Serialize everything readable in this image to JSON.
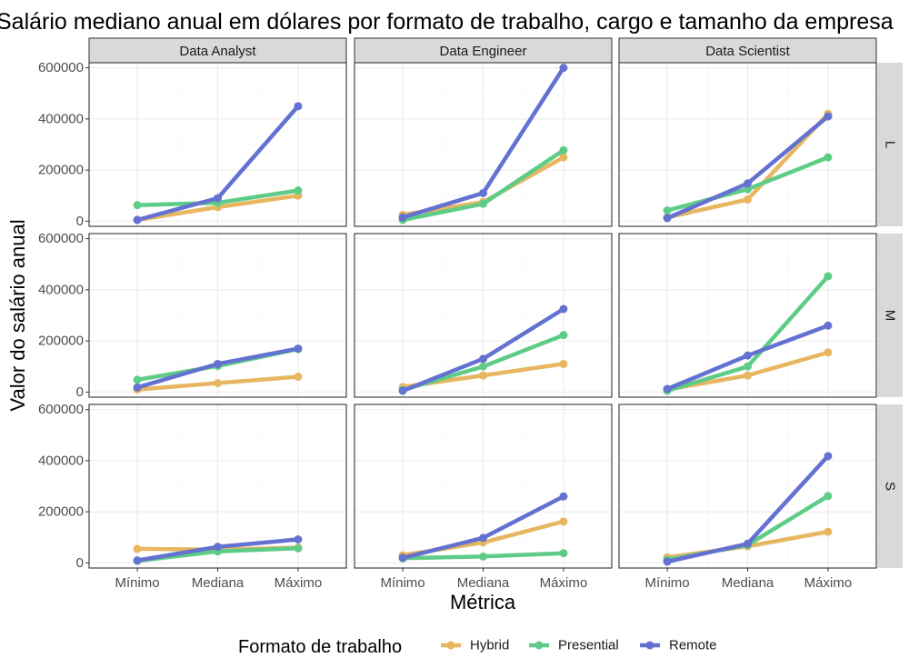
{
  "chart_data": {
    "type": "line",
    "title": "Salário mediano anual em dólares por formato de trabalho, cargo e tamanho da empresa",
    "xlabel": "Métrica",
    "ylabel": "Valor do salário anual",
    "categories": [
      "Mínimo",
      "Mediana",
      "Máximo"
    ],
    "y_ticks": [
      "0",
      "200000",
      "400000",
      "600000"
    ],
    "ylim": [
      -20000,
      620000
    ],
    "grid": true,
    "legend": {
      "title": "Formato de trabalho",
      "position": "bottom"
    },
    "col_facets": [
      "Data Analyst",
      "Data Engineer",
      "Data Scientist"
    ],
    "row_facets": [
      "L",
      "M",
      "S"
    ],
    "series_names": [
      "Hybrid",
      "Presential",
      "Remote"
    ],
    "colors": {
      "Hybrid": "#E8B660",
      "Presential": "#5ECC87",
      "Remote": "#6371D1"
    },
    "panels": [
      {
        "row": "L",
        "col": "Data Analyst",
        "series": [
          {
            "name": "Hybrid",
            "values": [
              5000,
              55000,
              100000
            ]
          },
          {
            "name": "Presential",
            "values": [
              63000,
              72000,
              120000
            ]
          },
          {
            "name": "Remote",
            "values": [
              5000,
              90000,
              450000
            ]
          }
        ]
      },
      {
        "row": "L",
        "col": "Data Engineer",
        "series": [
          {
            "name": "Hybrid",
            "values": [
              25000,
              75000,
              250000
            ]
          },
          {
            "name": "Presential",
            "values": [
              5000,
              68000,
              278000
            ]
          },
          {
            "name": "Remote",
            "values": [
              15000,
              110000,
              600000
            ]
          }
        ]
      },
      {
        "row": "L",
        "col": "Data Scientist",
        "series": [
          {
            "name": "Hybrid",
            "values": [
              15000,
              85000,
              420000
            ]
          },
          {
            "name": "Presential",
            "values": [
              42000,
              125000,
              250000
            ]
          },
          {
            "name": "Remote",
            "values": [
              12000,
              148000,
              410000
            ]
          }
        ]
      },
      {
        "row": "M",
        "col": "Data Analyst",
        "series": [
          {
            "name": "Hybrid",
            "values": [
              10000,
              35000,
              60000
            ]
          },
          {
            "name": "Presential",
            "values": [
              48000,
              102000,
              168000
            ]
          },
          {
            "name": "Remote",
            "values": [
              18000,
              110000,
              170000
            ]
          }
        ]
      },
      {
        "row": "M",
        "col": "Data Engineer",
        "series": [
          {
            "name": "Hybrid",
            "values": [
              20000,
              65000,
              110000
            ]
          },
          {
            "name": "Presential",
            "values": [
              8000,
              100000,
              223000
            ]
          },
          {
            "name": "Remote",
            "values": [
              5000,
              130000,
              325000
            ]
          }
        ]
      },
      {
        "row": "M",
        "col": "Data Scientist",
        "series": [
          {
            "name": "Hybrid",
            "values": [
              10000,
              65000,
              155000
            ]
          },
          {
            "name": "Presential",
            "values": [
              5000,
              100000,
              453000
            ]
          },
          {
            "name": "Remote",
            "values": [
              12000,
              143000,
              260000
            ]
          }
        ]
      },
      {
        "row": "S",
        "col": "Data Analyst",
        "series": [
          {
            "name": "Hybrid",
            "values": [
              55000,
              52000,
              60000
            ]
          },
          {
            "name": "Presential",
            "values": [
              8000,
              45000,
              57000
            ]
          },
          {
            "name": "Remote",
            "values": [
              10000,
              63000,
              92000
            ]
          }
        ]
      },
      {
        "row": "S",
        "col": "Data Engineer",
        "series": [
          {
            "name": "Hybrid",
            "values": [
              30000,
              80000,
              162000
            ]
          },
          {
            "name": "Presential",
            "values": [
              18000,
              25000,
              38000
            ]
          },
          {
            "name": "Remote",
            "values": [
              20000,
              98000,
              260000
            ]
          }
        ]
      },
      {
        "row": "S",
        "col": "Data Scientist",
        "series": [
          {
            "name": "Hybrid",
            "values": [
              22000,
              65000,
              122000
            ]
          },
          {
            "name": "Presential",
            "values": [
              12000,
              70000,
              262000
            ]
          },
          {
            "name": "Remote",
            "values": [
              5000,
              75000,
              418000
            ]
          }
        ]
      }
    ]
  }
}
